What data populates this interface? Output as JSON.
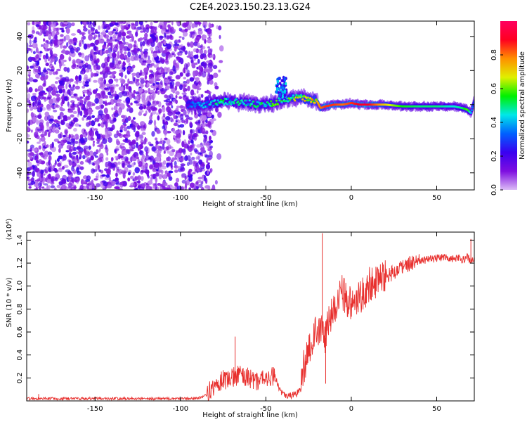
{
  "title": "C2E4.2023.150.23.13.G24",
  "chart_data": [
    {
      "type": "heatmap",
      "xlabel": "Height of straight line (km)",
      "ylabel": "Frequency (Hz)",
      "xlim": [
        -190,
        72
      ],
      "ylim": [
        -50,
        49
      ],
      "xticks": [
        -150,
        -100,
        -50,
        0,
        50
      ],
      "yticks": [
        -40,
        -20,
        0,
        20,
        40
      ],
      "grid": false,
      "colorbar": {
        "label": "Normalized spectral amplitude",
        "range": [
          0,
          1
        ],
        "ticks": [
          "0.0",
          "0.2",
          "0.4",
          "0.6",
          "0.8"
        ],
        "colormap": [
          "#dcbcf6",
          "#7e0ee0",
          "#3a00f0",
          "#0060ff",
          "#00e8e8",
          "#00f000",
          "#e0f000",
          "#ff9000",
          "#ff0020",
          "#ff0060"
        ]
      },
      "noise_region": {
        "x": [
          -190,
          -85
        ],
        "y": [
          -50,
          49
        ],
        "typical_amplitude": 0.1
      },
      "signal_trace": {
        "x": [
          -96,
          -90,
          -85,
          -80,
          -75,
          -70,
          -65,
          -60,
          -55,
          -50,
          -45,
          -40,
          -35,
          -30,
          -25,
          -20,
          -18,
          -15,
          -10,
          -5,
          0,
          5,
          10,
          15,
          20,
          30,
          40,
          50,
          60,
          65,
          68,
          70,
          72
        ],
        "y": [
          0,
          0,
          0,
          1,
          2,
          2,
          1,
          1,
          0,
          0,
          1,
          3,
          4,
          4,
          3,
          2,
          -2,
          -1,
          0,
          0,
          1,
          0,
          0,
          0,
          0,
          -1,
          -1,
          -1,
          -1,
          -2,
          -3,
          -5,
          2
        ],
        "amplitude": [
          0.3,
          0.35,
          0.4,
          0.45,
          0.5,
          0.45,
          0.5,
          0.45,
          0.55,
          0.5,
          0.55,
          0.5,
          0.6,
          0.65,
          0.7,
          0.75,
          0.8,
          0.85,
          0.85,
          0.8,
          0.85,
          0.9,
          0.9,
          0.8,
          0.7,
          0.55,
          0.5,
          0.5,
          0.45,
          0.5,
          0.6,
          0.4,
          0.3
        ]
      },
      "bursts": [
        {
          "x": [
            -44,
            -38
          ],
          "y": [
            5,
            16
          ],
          "amplitude": 0.35
        }
      ]
    },
    {
      "type": "line",
      "xlabel": "Height of straight line (km)",
      "ylabel": "SNR (10 * v/v)",
      "multiplier": "(x10⁴)",
      "xlim": [
        -190,
        72
      ],
      "ylim": [
        0,
        1.47
      ],
      "xticks": [
        -150,
        -100,
        -50,
        0,
        50
      ],
      "yticks": [
        "0.2",
        "0.4",
        "0.6",
        "0.8",
        "1.0",
        "1.2",
        "1.4"
      ],
      "grid": false,
      "series": [
        {
          "color": "#e8302e",
          "x": [
            -190,
            -180,
            -170,
            -160,
            -150,
            -140,
            -130,
            -120,
            -110,
            -100,
            -90,
            -85,
            -80,
            -75,
            -70,
            -65,
            -60,
            -55,
            -50,
            -45,
            -42,
            -40,
            -38,
            -35,
            -32,
            -30,
            -27,
            -25,
            -22,
            -20,
            -18,
            -16,
            -15,
            -13,
            -10,
            -8,
            -5,
            -2,
            0,
            3,
            5,
            8,
            10,
            15,
            20,
            25,
            30,
            35,
            40,
            45,
            50,
            55,
            60,
            63,
            66,
            68,
            70,
            72
          ],
          "values": [
            0.02,
            0.02,
            0.02,
            0.02,
            0.02,
            0.02,
            0.02,
            0.02,
            0.02,
            0.02,
            0.02,
            0.05,
            0.12,
            0.18,
            0.21,
            0.22,
            0.2,
            0.18,
            0.2,
            0.22,
            0.1,
            0.06,
            0.05,
            0.05,
            0.06,
            0.12,
            0.35,
            0.45,
            0.55,
            0.6,
            0.65,
            0.5,
            0.55,
            0.7,
            0.8,
            0.85,
            0.95,
            0.85,
            0.85,
            0.9,
            0.92,
            0.95,
            1.0,
            1.05,
            1.08,
            1.12,
            1.16,
            1.2,
            1.22,
            1.23,
            1.24,
            1.25,
            1.24,
            1.24,
            1.23,
            1.25,
            1.22,
            1.22
          ],
          "spikes": [
            {
              "x": -183,
              "y": 0.06
            },
            {
              "x": -68,
              "y": 0.56
            },
            {
              "x": -17,
              "y": 1.46
            },
            {
              "x": -15,
              "y": 0.15
            },
            {
              "x": 70,
              "y": 1.41
            }
          ]
        }
      ]
    }
  ]
}
